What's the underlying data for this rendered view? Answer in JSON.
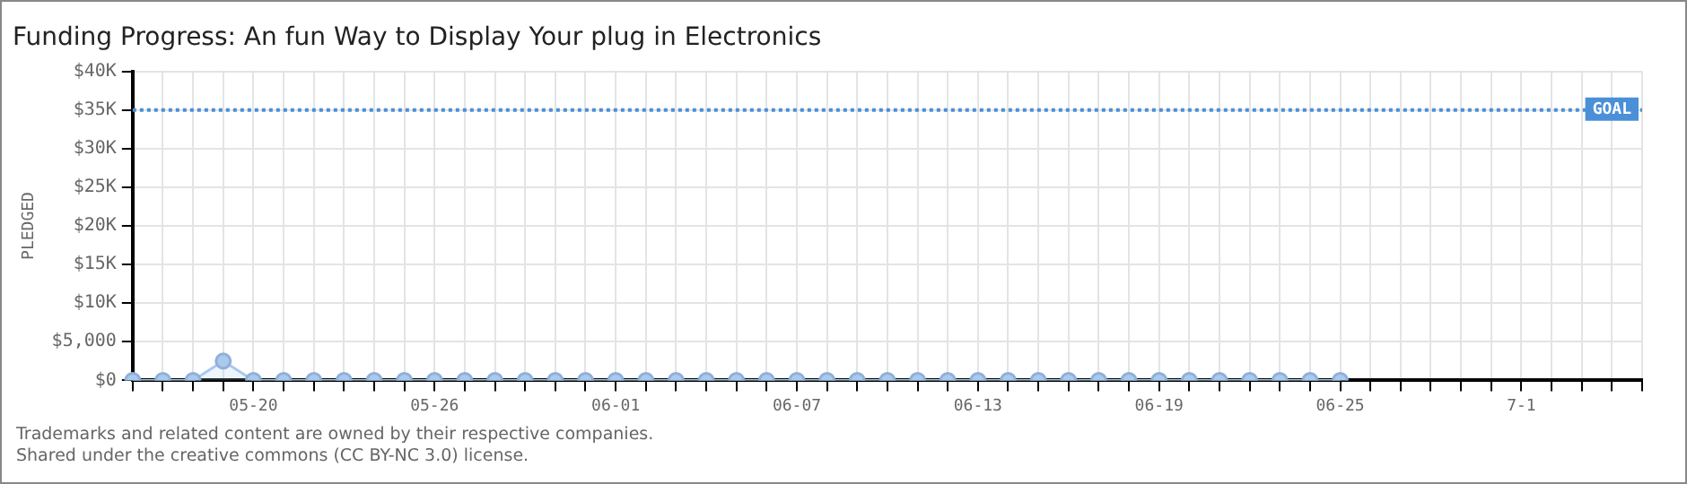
{
  "chart_data": {
    "type": "area",
    "title": "Funding Progress: An fun Way to Display Your plug in Electronics",
    "ylabel": "PLEDGED",
    "categories": [
      null,
      null,
      null,
      null,
      "05-20",
      null,
      null,
      null,
      null,
      null,
      "05-26",
      null,
      null,
      null,
      null,
      null,
      "06-01",
      null,
      null,
      null,
      null,
      null,
      "06-07",
      null,
      null,
      null,
      null,
      null,
      "06-13",
      null,
      null,
      null,
      null,
      null,
      "06-19",
      null,
      null,
      null,
      null,
      null,
      "06-25",
      null,
      null,
      null,
      null,
      null,
      "7-1",
      null,
      null,
      null,
      null
    ],
    "series": [
      {
        "color": "#a9c9ee",
        "values": [
          0,
          0,
          0,
          2500,
          0,
          0,
          0,
          0,
          0,
          0,
          0,
          0,
          0,
          0,
          0,
          0,
          0,
          0,
          0,
          0,
          0,
          0,
          0,
          0,
          0,
          0,
          0,
          0,
          0,
          0,
          0,
          0,
          0,
          0,
          0,
          0,
          0,
          0,
          0,
          0,
          0,
          null,
          null,
          null,
          null,
          null,
          null,
          null,
          null,
          null,
          null
        ]
      }
    ],
    "ylim": [
      0,
      40000
    ],
    "yticks": [
      {
        "value": 0,
        "label": "$0"
      },
      {
        "value": 5000,
        "label": "$5,000"
      },
      {
        "value": 10000,
        "label": "$10K"
      },
      {
        "value": 15000,
        "label": "$15K"
      },
      {
        "value": 20000,
        "label": "$20K"
      },
      {
        "value": 25000,
        "label": "$25K"
      },
      {
        "value": 30000,
        "label": "$30K"
      },
      {
        "value": 35000,
        "label": "$35K"
      },
      {
        "value": 40000,
        "label": "$40K"
      }
    ],
    "grid": true,
    "legend": false,
    "marker": "circle",
    "line_style": "solid",
    "ref_lines": [
      {
        "axis": "y",
        "value": 35000,
        "label": "GOAL",
        "color": "#4a8fd8",
        "line_style": "dotted"
      }
    ],
    "annotations": [
      "Trademarks and related content are owned by their respective companies.",
      "Shared under the creative commons (CC BY-NC 3.0) license."
    ]
  }
}
